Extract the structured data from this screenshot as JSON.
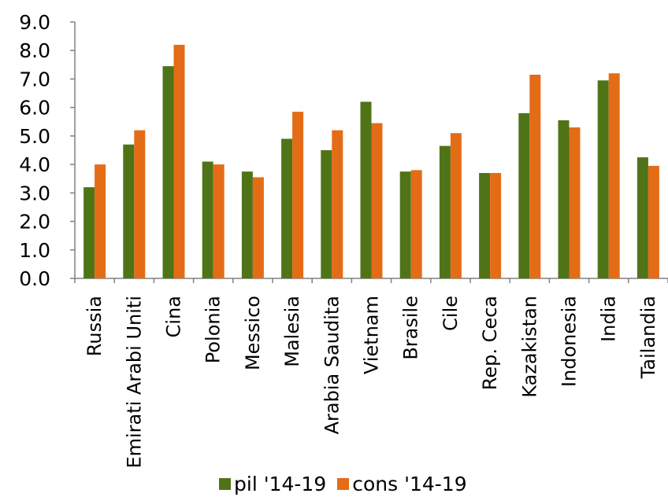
{
  "chart_data": {
    "type": "bar",
    "categories": [
      "Russia",
      "Emirati Arabi Uniti",
      "Cina",
      "Polonia",
      "Messico",
      "Malesia",
      "Arabia Saudita",
      "Vietnam",
      "Brasile",
      "Cile",
      "Rep. Ceca",
      "Kazakistan",
      "Indonesia",
      "India",
      "Tailandia"
    ],
    "series": [
      {
        "name": "pil '14-19",
        "color": "#4f7418",
        "values": [
          3.2,
          4.7,
          7.45,
          4.1,
          3.75,
          4.9,
          4.5,
          6.2,
          3.75,
          4.65,
          3.7,
          5.8,
          5.55,
          6.95,
          4.25
        ]
      },
      {
        "name": "cons '14-19",
        "color": "#e46c16",
        "values": [
          4.0,
          5.2,
          8.2,
          4.0,
          3.55,
          5.85,
          5.2,
          5.45,
          3.8,
          5.1,
          3.7,
          7.15,
          5.3,
          7.2,
          3.95
        ]
      }
    ],
    "yticks": [
      "0.0",
      "1.0",
      "2.0",
      "3.0",
      "4.0",
      "5.0",
      "6.0",
      "7.0",
      "8.0",
      "9.0"
    ],
    "ylim": [
      0,
      9
    ],
    "grid": false,
    "legend_position": "bottom"
  }
}
